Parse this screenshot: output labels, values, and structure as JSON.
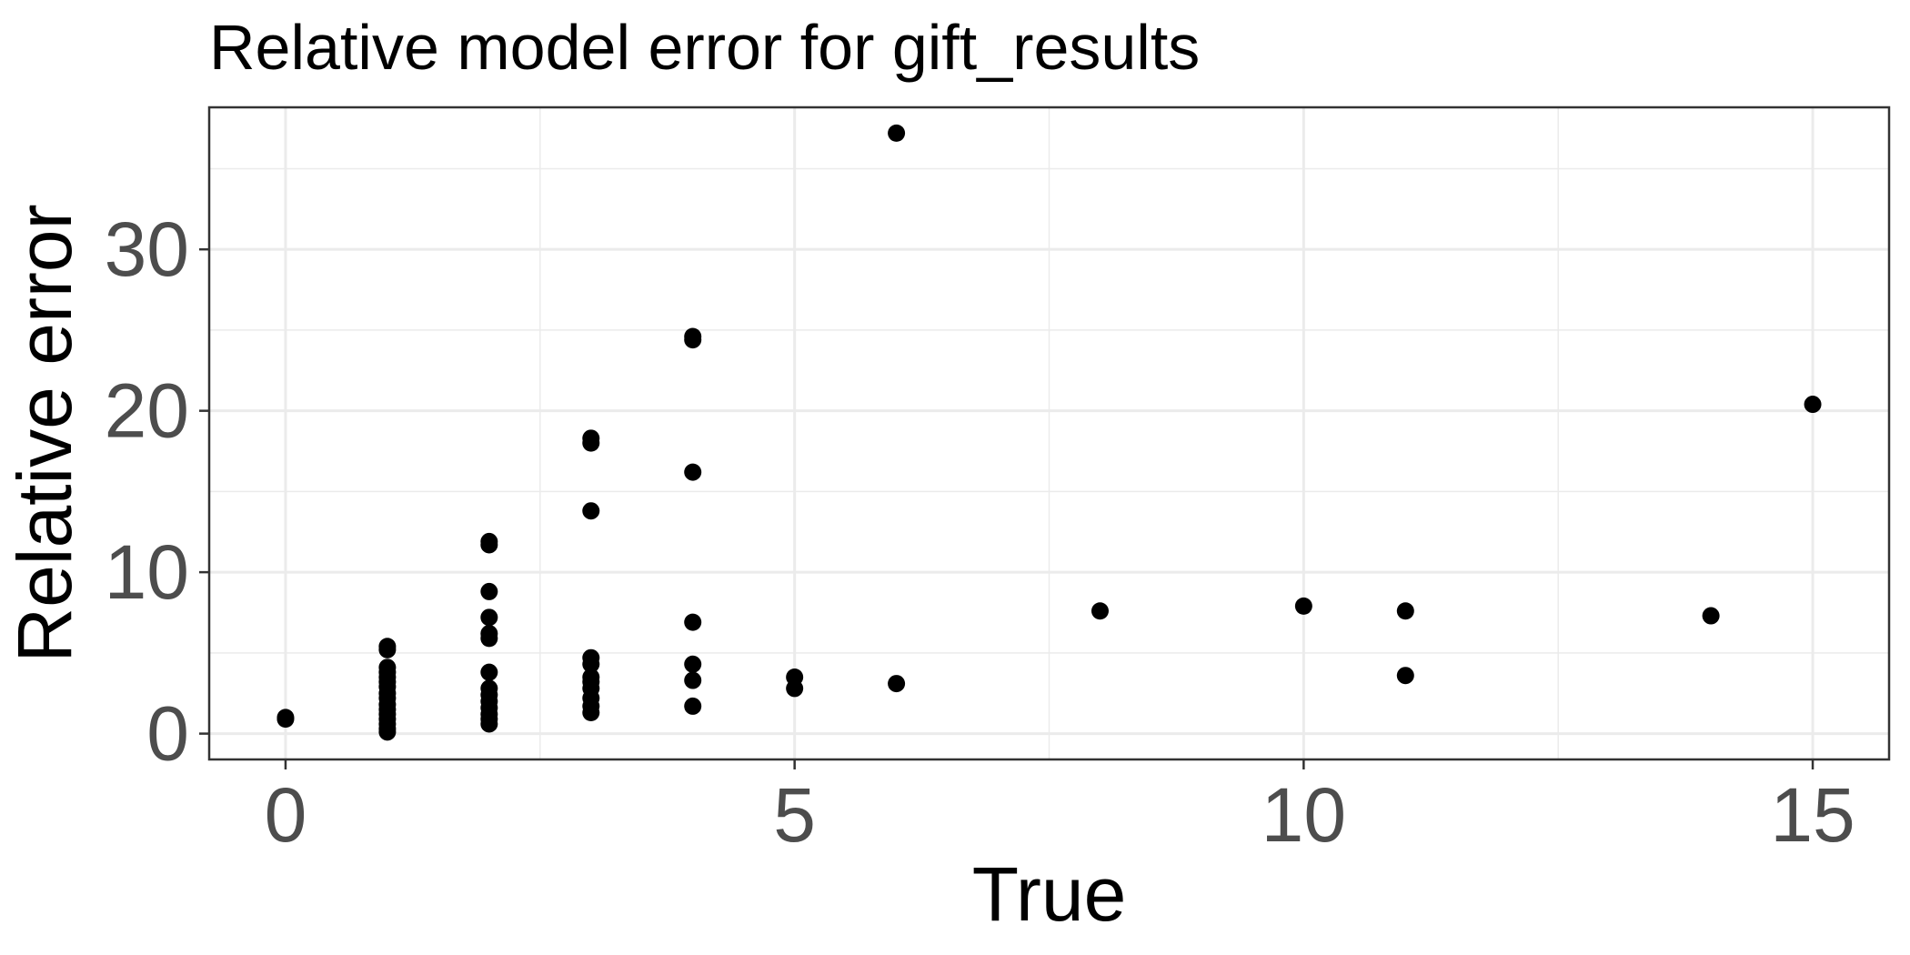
{
  "chart_data": {
    "type": "scatter",
    "title": "Relative model error for gift_results",
    "xlabel": "True",
    "ylabel": "Relative error",
    "xlim": [
      -0.75,
      15.75
    ],
    "ylim": [
      -1.6,
      38.8
    ],
    "x_ticks": [
      0,
      5,
      10,
      15
    ],
    "y_ticks": [
      0,
      10,
      20,
      30
    ],
    "grid": true,
    "legend": "none",
    "point_color": "#000000",
    "points": [
      {
        "x": 0,
        "y": 1.0
      },
      {
        "x": 0,
        "y": 0.9
      },
      {
        "x": 1,
        "y": 5.4
      },
      {
        "x": 1,
        "y": 5.2
      },
      {
        "x": 1,
        "y": 4.1
      },
      {
        "x": 1,
        "y": 3.8
      },
      {
        "x": 1,
        "y": 3.5
      },
      {
        "x": 1,
        "y": 3.2
      },
      {
        "x": 1,
        "y": 2.9
      },
      {
        "x": 1,
        "y": 2.5
      },
      {
        "x": 1,
        "y": 2.2
      },
      {
        "x": 1,
        "y": 1.8
      },
      {
        "x": 1,
        "y": 1.5
      },
      {
        "x": 1,
        "y": 1.2
      },
      {
        "x": 1,
        "y": 0.9
      },
      {
        "x": 1,
        "y": 0.6
      },
      {
        "x": 1,
        "y": 0.3
      },
      {
        "x": 1,
        "y": 0.1
      },
      {
        "x": 2,
        "y": 11.9
      },
      {
        "x": 2,
        "y": 11.7
      },
      {
        "x": 2,
        "y": 8.8
      },
      {
        "x": 2,
        "y": 7.2
      },
      {
        "x": 2,
        "y": 6.2
      },
      {
        "x": 2,
        "y": 5.9
      },
      {
        "x": 2,
        "y": 3.8
      },
      {
        "x": 2,
        "y": 2.8
      },
      {
        "x": 2,
        "y": 2.4
      },
      {
        "x": 2,
        "y": 2.0
      },
      {
        "x": 2,
        "y": 1.6
      },
      {
        "x": 2,
        "y": 1.2
      },
      {
        "x": 2,
        "y": 0.9
      },
      {
        "x": 2,
        "y": 0.6
      },
      {
        "x": 3,
        "y": 18.3
      },
      {
        "x": 3,
        "y": 18.0
      },
      {
        "x": 3,
        "y": 13.8
      },
      {
        "x": 3,
        "y": 4.7
      },
      {
        "x": 3,
        "y": 4.3
      },
      {
        "x": 3,
        "y": 3.5
      },
      {
        "x": 3,
        "y": 3.2
      },
      {
        "x": 3,
        "y": 2.8
      },
      {
        "x": 3,
        "y": 2.2
      },
      {
        "x": 3,
        "y": 1.7
      },
      {
        "x": 3,
        "y": 1.3
      },
      {
        "x": 4,
        "y": 24.6
      },
      {
        "x": 4,
        "y": 24.4
      },
      {
        "x": 4,
        "y": 16.2
      },
      {
        "x": 4,
        "y": 6.9
      },
      {
        "x": 4,
        "y": 4.3
      },
      {
        "x": 4,
        "y": 3.3
      },
      {
        "x": 4,
        "y": 1.7
      },
      {
        "x": 5,
        "y": 3.5
      },
      {
        "x": 5,
        "y": 2.8
      },
      {
        "x": 6,
        "y": 37.2
      },
      {
        "x": 6,
        "y": 3.1
      },
      {
        "x": 8,
        "y": 7.6
      },
      {
        "x": 10,
        "y": 7.9
      },
      {
        "x": 11,
        "y": 7.6
      },
      {
        "x": 11,
        "y": 3.6
      },
      {
        "x": 14,
        "y": 7.3
      },
      {
        "x": 15,
        "y": 20.4
      }
    ]
  }
}
